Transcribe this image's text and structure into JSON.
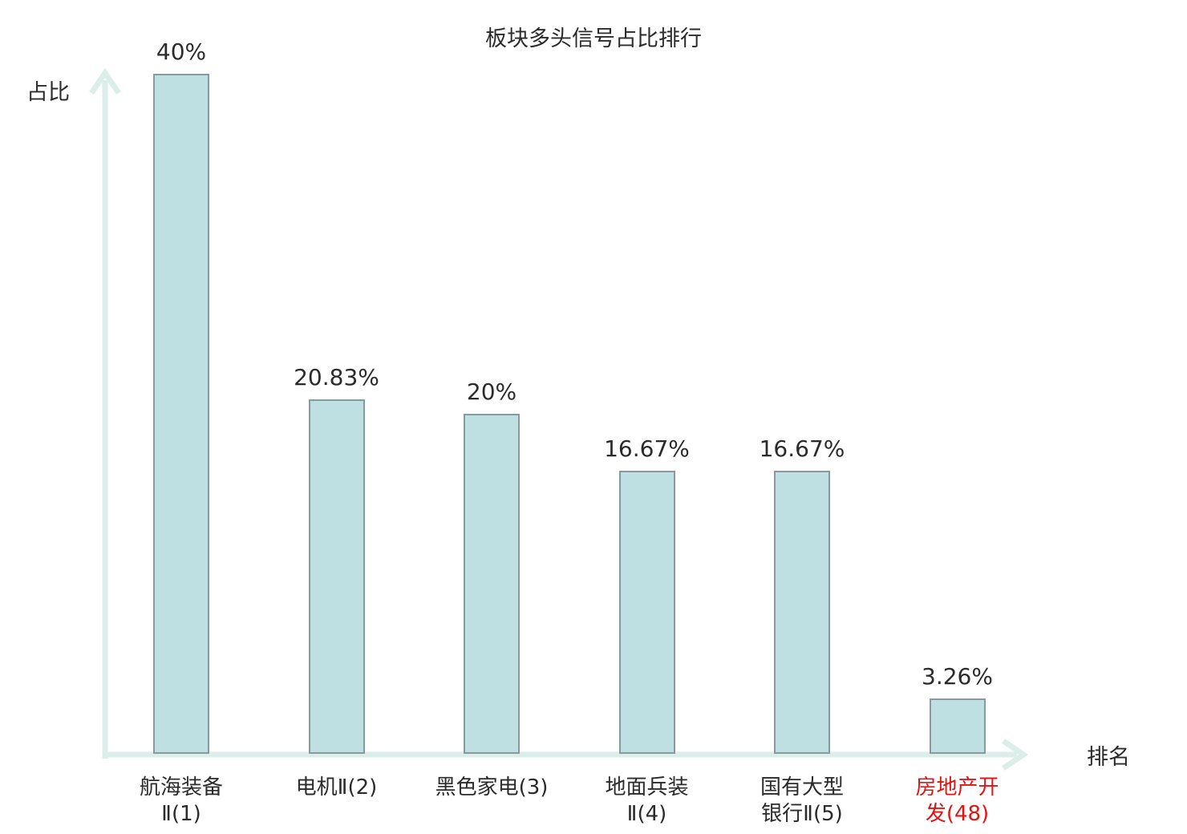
{
  "chart_data": {
    "type": "bar",
    "title": "板块多头信号占比排行",
    "xlabel": "排名",
    "ylabel": "占比",
    "categories": [
      "航海装备Ⅱ(1)",
      "电机Ⅱ(2)",
      "黑色家电(3)",
      "地面兵装Ⅱ(4)",
      "国有大型银行Ⅱ(5)",
      "房地产开发(48)"
    ],
    "category_lines": [
      [
        "航海装备",
        "Ⅱ(1)"
      ],
      [
        "电机Ⅱ(2)"
      ],
      [
        "黑色家电(3)"
      ],
      [
        "地面兵装",
        "Ⅱ(4)"
      ],
      [
        "国有大型",
        "银行Ⅱ(5)"
      ],
      [
        "房地产开",
        "发(48)"
      ]
    ],
    "values": [
      40,
      20.83,
      20,
      16.67,
      16.67,
      3.26
    ],
    "value_labels": [
      "40%",
      "20.83%",
      "20%",
      "16.67%",
      "16.67%",
      "3.26%"
    ],
    "highlighted_index": 5,
    "ylim": [
      0,
      42
    ],
    "grid": false,
    "legend": null,
    "colors": {
      "bar_fill": "#bfe0e2",
      "bar_border": "#879a9e",
      "axis": "#dceee9",
      "text": "#2b2b2b",
      "highlight": "#e11414",
      "background": "#ffffff"
    }
  }
}
